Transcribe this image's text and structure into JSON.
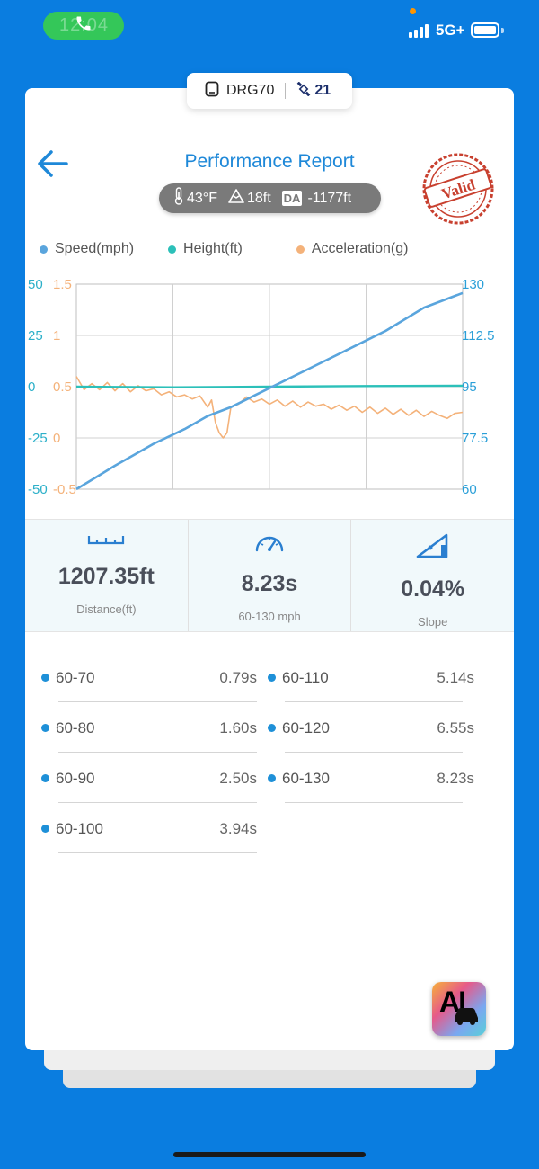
{
  "status_bar": {
    "time": "12:04",
    "network": "5G+"
  },
  "device": {
    "name": "DRG70",
    "satellites": "21"
  },
  "header": {
    "title": "Performance Report",
    "stamp_text": "Valid"
  },
  "conditions": {
    "temperature": "43°F",
    "altitude": "18ft",
    "da_label": "DA",
    "density_altitude": "-1177ft"
  },
  "legend": [
    {
      "label": "Speed(mph)",
      "color": "#5aa5dd"
    },
    {
      "label": "Height(ft)",
      "color": "#2cc0b9"
    },
    {
      "label": "Acceleration(g)",
      "color": "#f4b27a"
    }
  ],
  "chart_data": {
    "type": "line",
    "axes": {
      "height_left": {
        "ticks": [
          "50",
          "25",
          "0",
          "-25",
          "-50"
        ],
        "color": "#2cb0c9"
      },
      "accel_left": {
        "ticks": [
          "1.5",
          "1",
          "0.5",
          "0",
          "-0.5"
        ],
        "color": "#f4b27a"
      },
      "speed_right": {
        "ticks": [
          "130",
          "112.5",
          "95",
          "77.5",
          "60"
        ],
        "color": "#2a9fd8"
      }
    },
    "ylim_speed": [
      60,
      130
    ],
    "ylim_height": [
      -50,
      50
    ],
    "ylim_accel": [
      -0.5,
      1.5
    ],
    "grid": true,
    "series": [
      {
        "name": "Speed(mph)",
        "axis": "speed",
        "color": "#5aa5dd",
        "x": [
          0,
          0.05,
          0.1,
          0.2,
          0.28,
          0.34,
          0.4,
          0.5,
          0.6,
          0.7,
          0.8,
          0.9,
          1.0
        ],
        "values": [
          60,
          64,
          68,
          75.5,
          80.5,
          85,
          88,
          94.5,
          101,
          107.5,
          114,
          122,
          127
        ]
      },
      {
        "name": "Height(ft)",
        "axis": "height",
        "color": "#2cc0b9",
        "x": [
          0,
          0.25,
          0.5,
          0.75,
          1.0
        ],
        "values": [
          0,
          -0.3,
          0,
          0.3,
          0.5
        ]
      },
      {
        "name": "Acceleration(g)",
        "axis": "accel",
        "color": "#f4b27a",
        "x": [
          0,
          0.02,
          0.04,
          0.06,
          0.08,
          0.1,
          0.12,
          0.14,
          0.16,
          0.18,
          0.2,
          0.22,
          0.24,
          0.26,
          0.28,
          0.3,
          0.32,
          0.34,
          0.35,
          0.36,
          0.37,
          0.38,
          0.39,
          0.4,
          0.42,
          0.44,
          0.46,
          0.48,
          0.5,
          0.52,
          0.54,
          0.56,
          0.58,
          0.6,
          0.62,
          0.64,
          0.66,
          0.68,
          0.7,
          0.72,
          0.74,
          0.76,
          0.78,
          0.8,
          0.82,
          0.84,
          0.86,
          0.88,
          0.9,
          0.92,
          0.94,
          0.96,
          0.98,
          1.0
        ],
        "values": [
          0.6,
          0.47,
          0.53,
          0.47,
          0.54,
          0.46,
          0.53,
          0.45,
          0.51,
          0.46,
          0.48,
          0.42,
          0.45,
          0.4,
          0.42,
          0.38,
          0.41,
          0.3,
          0.37,
          0.15,
          0.05,
          0.0,
          0.05,
          0.3,
          0.33,
          0.4,
          0.35,
          0.38,
          0.33,
          0.37,
          0.31,
          0.36,
          0.3,
          0.35,
          0.31,
          0.33,
          0.28,
          0.32,
          0.27,
          0.31,
          0.25,
          0.3,
          0.24,
          0.29,
          0.23,
          0.28,
          0.22,
          0.27,
          0.21,
          0.26,
          0.22,
          0.19,
          0.24,
          0.25
        ]
      }
    ]
  },
  "stats": [
    {
      "icon": "ruler-icon",
      "value": "1207.35ft",
      "label": "Distance(ft)"
    },
    {
      "icon": "speedometer-icon",
      "value": "8.23s",
      "label": "60-130 mph"
    },
    {
      "icon": "slope-icon",
      "value": "0.04%",
      "label": "Slope"
    }
  ],
  "splits": [
    {
      "range": "60-70",
      "time": "0.79s"
    },
    {
      "range": "60-80",
      "time": "1.60s"
    },
    {
      "range": "60-90",
      "time": "2.50s"
    },
    {
      "range": "60-100",
      "time": "3.94s"
    },
    {
      "range": "60-110",
      "time": "5.14s"
    },
    {
      "range": "60-120",
      "time": "6.55s"
    },
    {
      "range": "60-130",
      "time": "8.23s"
    }
  ],
  "ai_badge": {
    "label": "AI"
  }
}
